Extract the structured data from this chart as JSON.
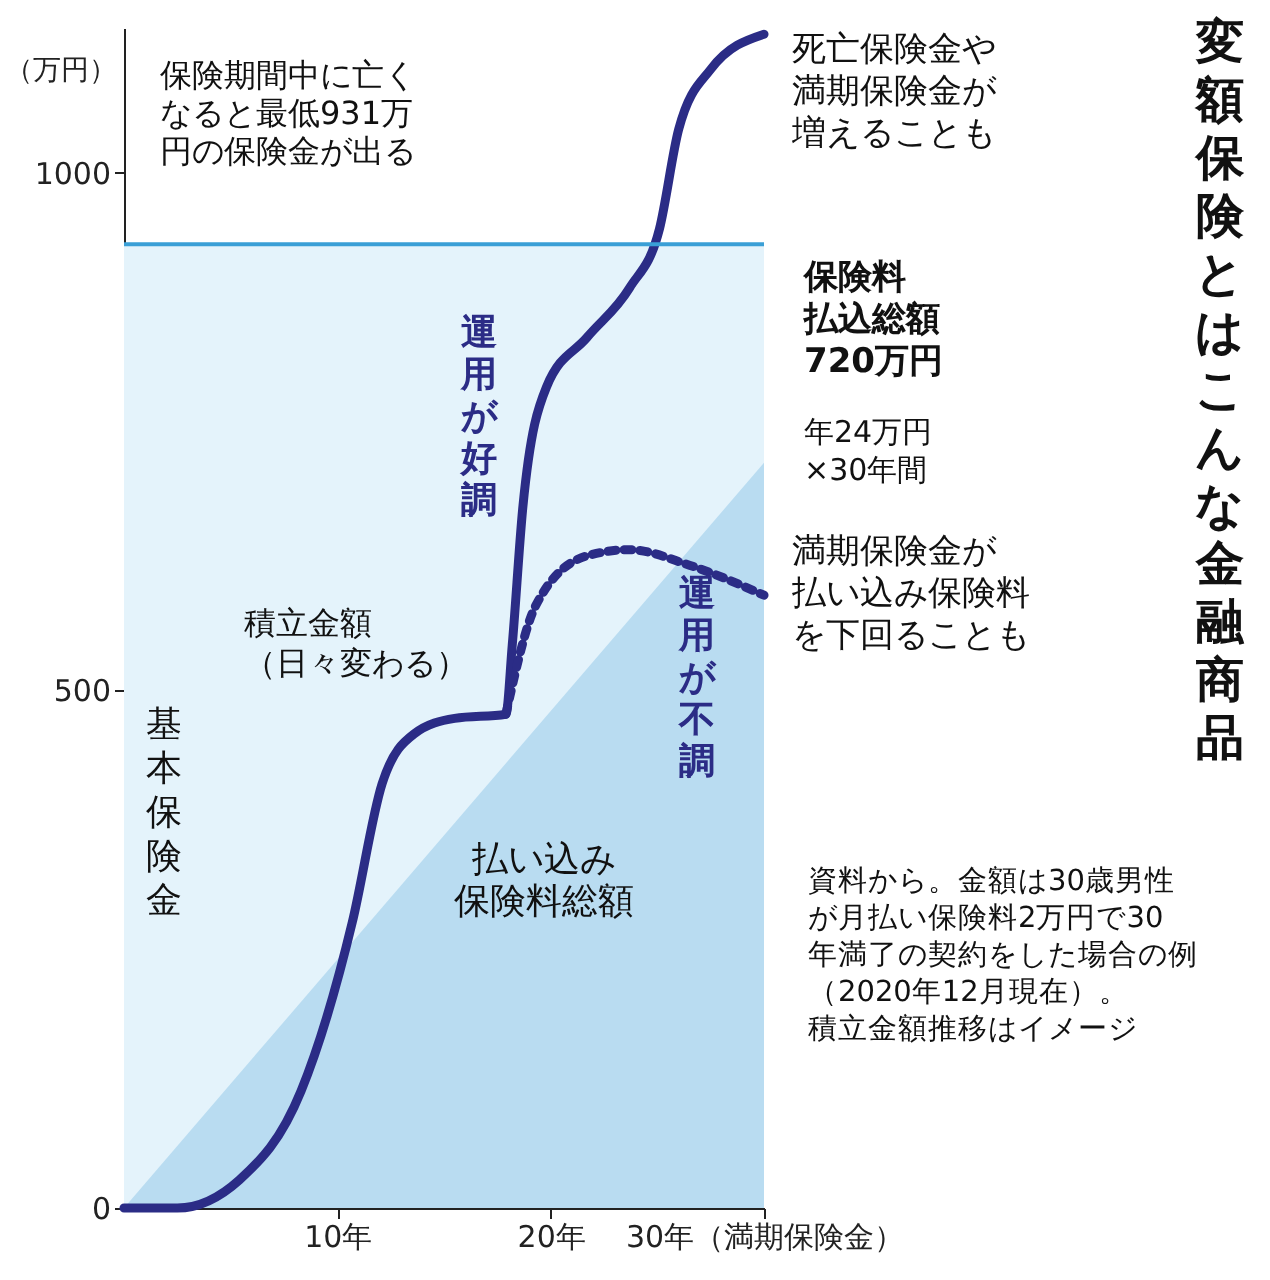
{
  "chart_data": {
    "type": "line",
    "title": "変額保険とはこんな金融商品",
    "ylabel": "（万円）",
    "xlim": [
      0,
      30
    ],
    "xticks": [
      {
        "value": 10,
        "label": "10年"
      },
      {
        "value": 20,
        "label": "20年"
      },
      {
        "value": 30,
        "label": "30年（満期保険金）"
      }
    ],
    "ylim": [
      0,
      1140
    ],
    "yticks": [
      0,
      500,
      1000
    ],
    "grid": false,
    "marker": "none",
    "bands": [
      {
        "axis": "y",
        "from": 0,
        "to": 931,
        "label": "基本保険金",
        "color": "#e4f3fb"
      }
    ],
    "ref_lines": [
      {
        "axis": "y",
        "value": 931,
        "label": "保険期間中に亡くなると最低931万円の保険金が出る",
        "color": "#3a9fd6"
      }
    ],
    "series": [
      {
        "name": "払い込み保険料総額",
        "type": "area",
        "color": "#b9dcf1",
        "x": [
          0,
          30
        ],
        "values": [
          0,
          720
        ]
      },
      {
        "name": "運用が好調",
        "color": "#2b2c86",
        "line_style": "solid",
        "x": [
          0,
          2.5,
          5.4,
          8.3,
          10.7,
          12.1,
          13.6,
          15.5,
          17.9,
          18.2,
          18.7,
          19.8,
          21.7,
          23.7,
          25.1,
          26,
          27.5,
          30
        ],
        "values": [
          0,
          0,
          27,
          113,
          276,
          410,
          458,
          473,
          477,
          544,
          678,
          793,
          841,
          889,
          946,
          1042,
          1100,
          1134
        ]
      },
      {
        "name": "運用が不調",
        "color": "#2b2c86",
        "line_style": "dotted",
        "x": [
          17.9,
          19.3,
          21.7,
          23.7,
          26.5,
          30
        ],
        "values": [
          477,
          582,
          630,
          636,
          621,
          592
        ]
      }
    ],
    "annotations": [
      "死亡保険金や満期保険金が増えることも",
      "保険料払込総額720万円",
      "年24万円×30年間",
      "満期保険金が払い込み保険料を下回ることも",
      "積立金額（日々変わる）",
      "資料から。金額は30歳男性が月払い保険料2万円で30年満了の契約をした場合の例（2020年12月現在）。積立金額推移はイメージ"
    ]
  }
}
